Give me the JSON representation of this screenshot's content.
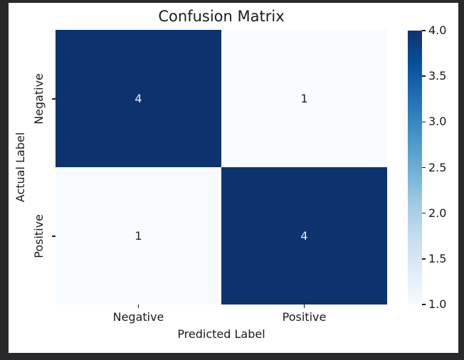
{
  "window": {
    "frame_color": "#29292b",
    "figure_background": "#ffffff",
    "text_color": "#1a1a1a"
  },
  "chart_data": {
    "type": "heatmap",
    "title": "Confusion Matrix",
    "xlabel": "Predicted Label",
    "ylabel": "Actual Label",
    "x_categories": [
      "Negative",
      "Positive"
    ],
    "y_categories": [
      "Negative",
      "Positive"
    ],
    "values": [
      [
        4,
        1
      ],
      [
        1,
        4
      ]
    ],
    "value_range": [
      1,
      4
    ],
    "colormap": "Blues",
    "grid": false,
    "legend_position": "colorbar-right",
    "cells": [
      {
        "row": "Negative",
        "col": "Negative",
        "value": "4",
        "bg": "#0d336e",
        "fg": "#edeff5"
      },
      {
        "row": "Negative",
        "col": "Positive",
        "value": "1",
        "bg": "#f7fbff",
        "fg": "#222222"
      },
      {
        "row": "Positive",
        "col": "Negative",
        "value": "1",
        "bg": "#f7fbff",
        "fg": "#222222"
      },
      {
        "row": "Positive",
        "col": "Positive",
        "value": "4",
        "bg": "#0d336e",
        "fg": "#edeff5"
      }
    ],
    "colorbar": {
      "ticks": [
        {
          "value": 4.0,
          "label": "4.0"
        },
        {
          "value": 3.5,
          "label": "3.5"
        },
        {
          "value": 3.0,
          "label": "3.0"
        },
        {
          "value": 2.5,
          "label": "2.5"
        },
        {
          "value": 2.0,
          "label": "2.0"
        },
        {
          "value": 1.5,
          "label": "1.5"
        },
        {
          "value": 1.0,
          "label": "1.0"
        }
      ],
      "gradient_stops": [
        {
          "pos": 0.0,
          "color": "#f7fbff"
        },
        {
          "pos": 0.125,
          "color": "#deebf7"
        },
        {
          "pos": 0.25,
          "color": "#c6dbef"
        },
        {
          "pos": 0.375,
          "color": "#9ecae1"
        },
        {
          "pos": 0.5,
          "color": "#6baed6"
        },
        {
          "pos": 0.625,
          "color": "#4292c6"
        },
        {
          "pos": 0.75,
          "color": "#2171b5"
        },
        {
          "pos": 0.875,
          "color": "#08519c"
        },
        {
          "pos": 1.0,
          "color": "#0d336e"
        }
      ]
    }
  }
}
